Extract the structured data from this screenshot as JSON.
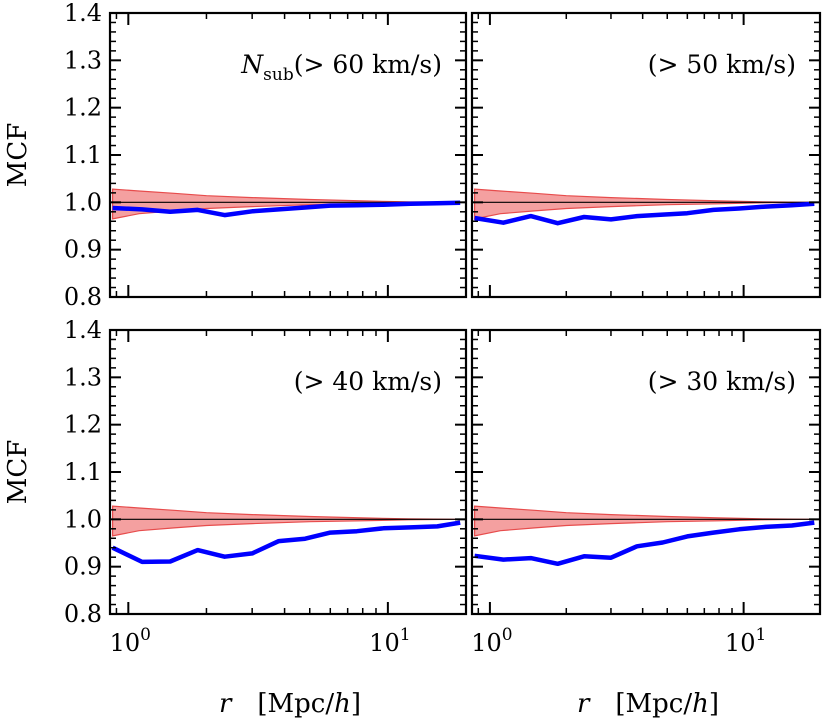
{
  "figure": {
    "ylabel": "MCF",
    "xlabel_var": "r",
    "xlabel_unit_open": "[Mpc/",
    "xlabel_unit_var": "h",
    "xlabel_unit_close": "]"
  },
  "colors": {
    "band_fill": "#f08080",
    "band_edge": "#e74c4c",
    "reference_line": "#000000",
    "mcf_line": "#0000ff"
  },
  "chart_data": [
    {
      "type": "line",
      "panel": "top-left",
      "label_prefix": "N",
      "label_sub": "sub",
      "label": "(> 60 km/s)",
      "xscale": "log",
      "xlim": [
        0.85,
        20
      ],
      "ylim": [
        0.8,
        1.4
      ],
      "yticks": [
        "0.8",
        "0.9",
        "1.0",
        "1.1",
        "1.2",
        "1.3",
        "1.4"
      ],
      "xticks": [],
      "ylabel": "MCF",
      "xlabel": "",
      "reference": 1.0,
      "band": {
        "x": [
          0.87,
          1.1,
          1.5,
          2,
          3,
          5,
          8,
          12,
          19
        ],
        "upper": [
          1.028,
          1.024,
          1.019,
          1.014,
          1.01,
          1.006,
          1.003,
          1.001,
          1.0
        ],
        "lower": [
          0.965,
          0.976,
          0.982,
          0.987,
          0.991,
          0.995,
          0.997,
          0.999,
          1.0
        ]
      },
      "series": [
        {
          "name": "MCF",
          "x": [
            0.87,
            1.13,
            1.45,
            1.85,
            2.35,
            3.0,
            3.8,
            4.8,
            6.0,
            7.6,
            9.6,
            12.2,
            15.5,
            19.0
          ],
          "y": [
            0.988,
            0.985,
            0.98,
            0.984,
            0.973,
            0.981,
            0.985,
            0.989,
            0.993,
            0.994,
            0.995,
            0.997,
            0.998,
            0.999
          ]
        }
      ]
    },
    {
      "type": "line",
      "panel": "top-right",
      "label": "(> 50 km/s)",
      "xscale": "log",
      "xlim": [
        0.85,
        20
      ],
      "ylim": [
        0.8,
        1.4
      ],
      "yticks": [],
      "xticks": [],
      "ylabel": "",
      "xlabel": "",
      "reference": 1.0,
      "band": {
        "x": [
          0.87,
          1.1,
          1.5,
          2,
          3,
          5,
          8,
          12,
          19
        ],
        "upper": [
          1.028,
          1.024,
          1.019,
          1.014,
          1.01,
          1.006,
          1.003,
          1.001,
          1.0
        ],
        "lower": [
          0.965,
          0.976,
          0.982,
          0.987,
          0.991,
          0.995,
          0.997,
          0.999,
          1.0
        ]
      },
      "series": [
        {
          "name": "MCF",
          "x": [
            0.87,
            1.13,
            1.45,
            1.85,
            2.35,
            3.0,
            3.8,
            4.8,
            6.0,
            7.6,
            9.6,
            12.2,
            15.5,
            19.0
          ],
          "y": [
            0.967,
            0.957,
            0.971,
            0.956,
            0.969,
            0.964,
            0.971,
            0.974,
            0.977,
            0.984,
            0.987,
            0.991,
            0.994,
            0.997
          ]
        }
      ]
    },
    {
      "type": "line",
      "panel": "bottom-left",
      "label": "(> 40 km/s)",
      "xscale": "log",
      "xlim": [
        0.85,
        20
      ],
      "ylim": [
        0.8,
        1.4
      ],
      "yticks": [
        "0.8",
        "0.9",
        "1.0",
        "1.1",
        "1.2",
        "1.3",
        "1.4"
      ],
      "xticks": [
        "10^0",
        "10^1"
      ],
      "ylabel": "MCF",
      "xlabel": "r [Mpc/h]",
      "reference": 1.0,
      "band": {
        "x": [
          0.87,
          1.1,
          1.5,
          2,
          3,
          5,
          8,
          12,
          19
        ],
        "upper": [
          1.028,
          1.024,
          1.019,
          1.014,
          1.01,
          1.006,
          1.003,
          1.001,
          1.0
        ],
        "lower": [
          0.965,
          0.976,
          0.982,
          0.987,
          0.991,
          0.995,
          0.997,
          0.999,
          1.0
        ]
      },
      "series": [
        {
          "name": "MCF",
          "x": [
            0.87,
            1.13,
            1.45,
            1.85,
            2.35,
            3.0,
            3.8,
            4.8,
            6.0,
            7.6,
            9.6,
            12.2,
            15.5,
            19.0
          ],
          "y": [
            0.94,
            0.91,
            0.911,
            0.935,
            0.921,
            0.928,
            0.954,
            0.959,
            0.972,
            0.975,
            0.981,
            0.983,
            0.985,
            0.993
          ]
        }
      ]
    },
    {
      "type": "line",
      "panel": "bottom-right",
      "label": "(> 30 km/s)",
      "xscale": "log",
      "xlim": [
        0.85,
        20
      ],
      "ylim": [
        0.8,
        1.4
      ],
      "yticks": [],
      "xticks": [
        "10^0",
        "10^1"
      ],
      "ylabel": "",
      "xlabel": "r [Mpc/h]",
      "reference": 1.0,
      "band": {
        "x": [
          0.87,
          1.1,
          1.5,
          2,
          3,
          5,
          8,
          12,
          19
        ],
        "upper": [
          1.028,
          1.024,
          1.019,
          1.014,
          1.01,
          1.006,
          1.003,
          1.001,
          1.0
        ],
        "lower": [
          0.965,
          0.976,
          0.982,
          0.987,
          0.991,
          0.995,
          0.997,
          0.999,
          1.0
        ]
      },
      "series": [
        {
          "name": "MCF",
          "x": [
            0.87,
            1.13,
            1.45,
            1.85,
            2.35,
            3.0,
            3.8,
            4.8,
            6.0,
            7.6,
            9.6,
            12.2,
            15.5,
            19.0
          ],
          "y": [
            0.923,
            0.915,
            0.918,
            0.906,
            0.922,
            0.919,
            0.943,
            0.951,
            0.964,
            0.972,
            0.979,
            0.984,
            0.987,
            0.993
          ]
        }
      ]
    }
  ]
}
